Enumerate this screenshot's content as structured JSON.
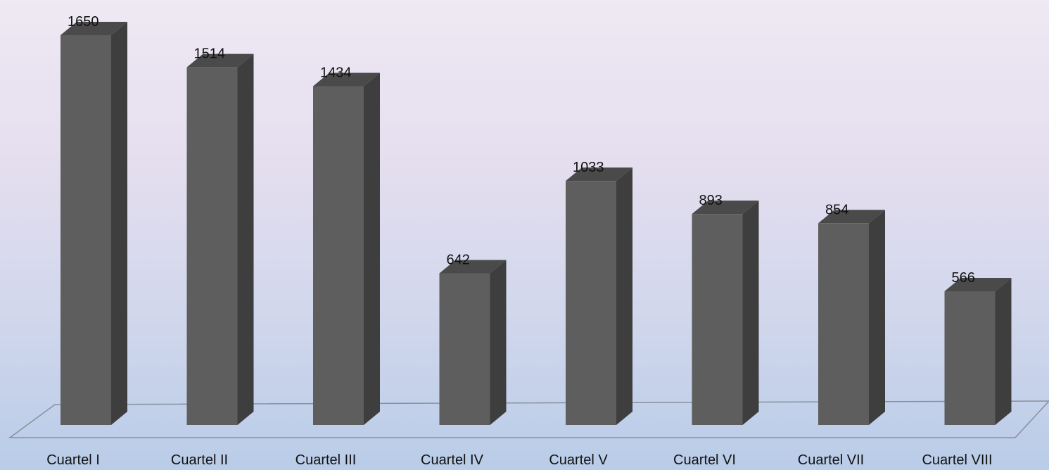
{
  "colors": {
    "bar_front": "#5e5e5e",
    "bar_side": "#3e3e3e",
    "bar_top": "#4a4a4a",
    "floor_line": "#8a8f99"
  },
  "chart_data": {
    "type": "bar",
    "style": "3d-column",
    "categories": [
      "Cuartel I",
      "Cuartel II",
      "Cuartel III",
      "Cuartel IV",
      "Cuartel V",
      "Cuartel VI",
      "Cuartel VII",
      "Cuartel VIII"
    ],
    "values": [
      1650,
      1514,
      1434,
      642,
      1033,
      893,
      854,
      566
    ],
    "value_labels": [
      "1650",
      "1514",
      "1434",
      "642",
      "1033",
      "893",
      "854",
      "566"
    ],
    "ylim": [
      0,
      1650
    ],
    "grid": false,
    "legend": "none"
  }
}
